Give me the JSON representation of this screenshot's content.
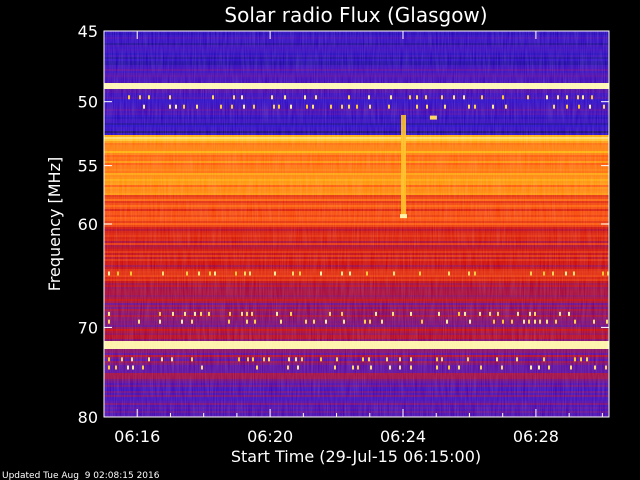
{
  "chart_data": {
    "type": "heatmap",
    "title": "Solar radio Flux (Glasgow)",
    "xlabel": "Start Time (29-Jul-15 06:15:00)",
    "ylabel": "Frequency [MHz]",
    "footer": "Updated Tue Aug  9 02:08:15 2016",
    "x_range_minutes": [
      0,
      15.2
    ],
    "x_ticks": [
      {
        "minute": 1,
        "label": "06:16"
      },
      {
        "minute": 5,
        "label": "06:20"
      },
      {
        "minute": 9,
        "label": "06:24"
      },
      {
        "minute": 13,
        "label": "06:28"
      }
    ],
    "y_scale": "log",
    "y_range_mhz": [
      45,
      80
    ],
    "y_ticks": [
      45,
      50,
      55,
      60,
      70,
      80
    ],
    "colormap": [
      "#000000",
      "#1e00c8",
      "#5000a0",
      "#c80000",
      "#ff5000",
      "#ffb400",
      "#ffffc8"
    ],
    "bands": [
      {
        "from_mhz": 45.0,
        "to_mhz": 47.6,
        "level": 0.18
      },
      {
        "from_mhz": 47.6,
        "to_mhz": 48.6,
        "level": 0.28
      },
      {
        "from_mhz": 48.6,
        "to_mhz": 49.1,
        "level": 0.98
      },
      {
        "from_mhz": 49.1,
        "to_mhz": 51.2,
        "level": 0.24
      },
      {
        "from_mhz": 51.2,
        "to_mhz": 52.5,
        "level": 0.16
      },
      {
        "from_mhz": 52.5,
        "to_mhz": 53.0,
        "level": 0.88
      },
      {
        "from_mhz": 53.0,
        "to_mhz": 57.5,
        "level": 0.75
      },
      {
        "from_mhz": 57.5,
        "to_mhz": 60.0,
        "level": 0.62
      },
      {
        "from_mhz": 60.0,
        "to_mhz": 66.0,
        "level": 0.52
      },
      {
        "from_mhz": 66.0,
        "to_mhz": 71.5,
        "level": 0.42
      },
      {
        "from_mhz": 71.5,
        "to_mhz": 72.2,
        "level": 0.97
      },
      {
        "from_mhz": 72.2,
        "to_mhz": 76.0,
        "level": 0.4
      },
      {
        "from_mhz": 76.0,
        "to_mhz": 80.0,
        "level": 0.3
      }
    ],
    "features": [
      {
        "kind": "vertical-stripe",
        "minute": 9.0,
        "from_mhz": 51.0,
        "to_mhz": 59.3,
        "level": 0.85
      },
      {
        "kind": "spot",
        "minute": 9.0,
        "mhz": 59.3,
        "level": 0.97
      },
      {
        "kind": "spot",
        "minute": 9.9,
        "mhz": 51.2,
        "level": 0.9
      }
    ]
  }
}
